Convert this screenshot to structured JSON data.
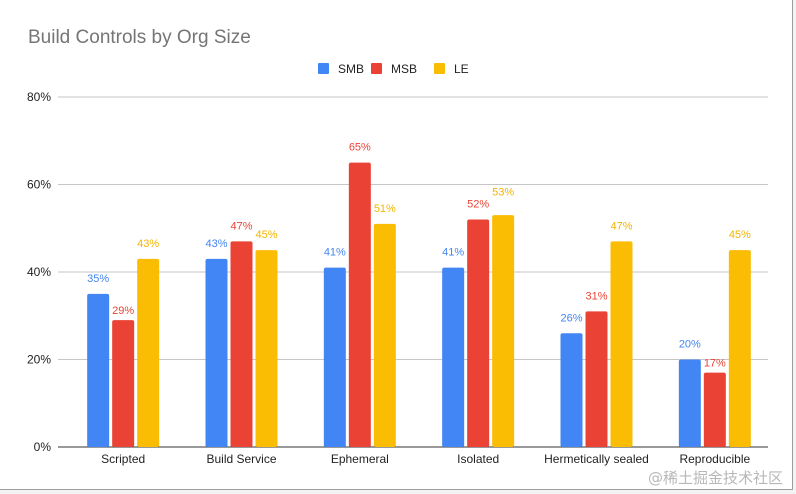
{
  "chart_data": {
    "type": "bar",
    "title": "Build Controls by Org Size",
    "categories": [
      "Scripted",
      "Build Service",
      "Ephemeral",
      "Isolated",
      "Hermetically sealed",
      "Reproducible"
    ],
    "series": [
      {
        "name": "SMB",
        "color": "#4285f4",
        "values": [
          35,
          43,
          41,
          41,
          26,
          20
        ]
      },
      {
        "name": "MSB",
        "color": "#ea4335",
        "values": [
          29,
          47,
          65,
          52,
          31,
          17
        ]
      },
      {
        "name": "LE",
        "color": "#fbbc04",
        "values": [
          43,
          45,
          51,
          53,
          47,
          45
        ]
      }
    ],
    "ylim": [
      0,
      80
    ],
    "yticks": [
      "0%",
      "20%",
      "40%",
      "60%",
      "80%"
    ],
    "ytick_values": [
      0,
      20,
      40,
      60,
      80
    ],
    "value_suffix": "%",
    "grid": true,
    "legend": "top"
  },
  "watermark": "@稀土掘金技术社区"
}
